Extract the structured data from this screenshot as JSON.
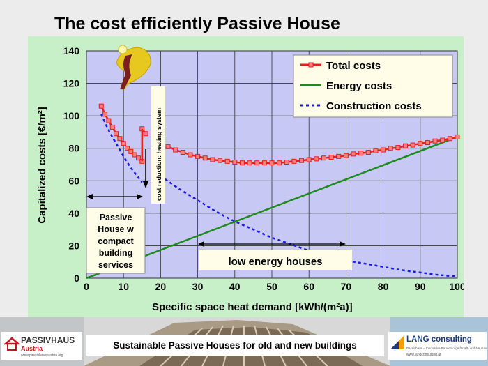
{
  "slide": {
    "title": "The cost efficiently Passive House",
    "footer_caption": "Sustainable Passive Houses for old and new buildings",
    "logo_left": {
      "name": "PASSIVHAUS",
      "sub": "Austria",
      "url": "www.passivhausaustria.org"
    },
    "logo_right": {
      "name": "LANG consulting",
      "tagline": "Passivhaus – Innovative Bauvorsorge für Alt- und Neubau",
      "url": "www.langconsulting.at"
    }
  },
  "chart_data": {
    "type": "line",
    "xlabel": "Specific space  heat demand [kWh/(m²a)]",
    "ylabel": "Capitalized costs [€/m²]",
    "xlim": [
      0,
      100
    ],
    "ylim": [
      0,
      140
    ],
    "x_ticks": [
      "0",
      "10",
      "20",
      "30",
      "40",
      "50",
      "60",
      "70",
      "80",
      "90",
      "100"
    ],
    "y_ticks": [
      "0",
      "20",
      "40",
      "60",
      "80",
      "100",
      "120",
      "140"
    ],
    "grid": true,
    "legend_position": "top-right",
    "colors": {
      "plot_bg": "#c8c8f5",
      "panel_bg": "#c8f0c8",
      "total": "#e61e1e",
      "energy": "#1e8a1e",
      "construction": "#1a1ae0"
    },
    "series": [
      {
        "name": "Total costs",
        "segments": [
          {
            "x": [
              4,
              5,
              6,
              7,
              8,
              9,
              10,
              11,
              12,
              13,
              14,
              15
            ],
            "y": [
              106,
              101,
              97,
              93,
              89,
              86,
              83,
              80,
              78,
              76,
              74,
              72
            ]
          },
          {
            "x": [
              15,
              16
            ],
            "y": [
              92,
              89
            ]
          },
          {
            "x": [
              22,
              24,
              26,
              28,
              30,
              32,
              34,
              36,
              38,
              40,
              42,
              44,
              46,
              48,
              50,
              52,
              54,
              56,
              58,
              60,
              62,
              64,
              66,
              68,
              70,
              72,
              74,
              76,
              78,
              80,
              82,
              84,
              86,
              88,
              90,
              92,
              94,
              96,
              98,
              100
            ],
            "y": [
              81,
              79,
              77.5,
              76,
              75,
              74,
              73,
              72.5,
              72,
              71.5,
              71,
              71,
              71,
              71,
              71,
              71,
              71.5,
              72,
              72.5,
              73,
              73.5,
              74,
              74.5,
              75,
              75.5,
              76.5,
              77,
              77.5,
              78.5,
              79,
              80,
              80.5,
              81.5,
              82,
              83,
              83.5,
              84.5,
              85,
              86,
              87
            ]
          }
        ]
      },
      {
        "name": "Energy costs",
        "x": [
          0,
          15,
          100
        ],
        "y": [
          0,
          13,
          87
        ]
      },
      {
        "name": "Construction costs",
        "x": [
          4,
          6,
          8,
          10,
          12,
          14,
          15,
          20,
          25,
          30,
          35,
          40,
          45,
          50,
          55,
          60,
          65,
          70,
          75,
          80,
          85,
          90,
          95,
          100
        ],
        "y": [
          101,
          91,
          83,
          75,
          68,
          62,
          59,
          63,
          55,
          48,
          41,
          35,
          30,
          25,
          21,
          17,
          14,
          11,
          9,
          7,
          5,
          3.5,
          2,
          1
        ]
      }
    ],
    "annotations": {
      "passive_house": [
        "Passive",
        "House w",
        "compact",
        "building",
        "services"
      ],
      "low_energy": "low energy houses",
      "cost_reduction": "cost reduction: heating system"
    }
  }
}
